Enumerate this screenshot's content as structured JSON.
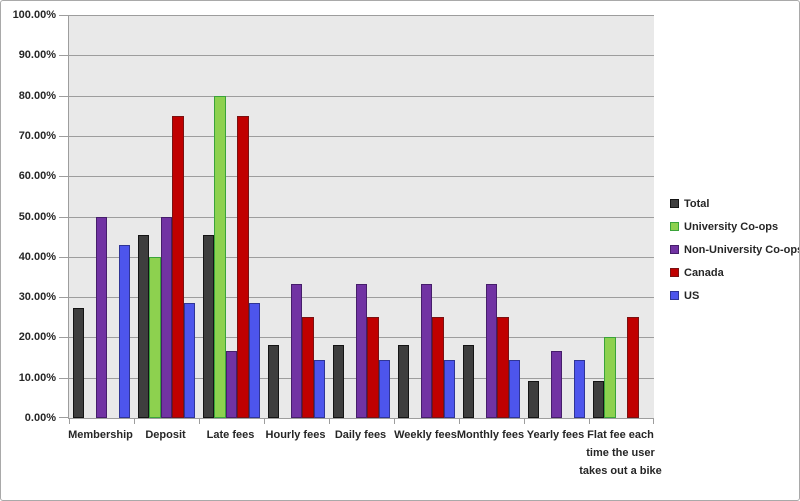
{
  "chart_data": {
    "type": "bar",
    "title": "",
    "xlabel": "",
    "ylabel": "",
    "grid": true,
    "legend_position": "right",
    "ylim": [
      0,
      100
    ],
    "y_ticks": [
      "0.00%",
      "10.00%",
      "20.00%",
      "30.00%",
      "40.00%",
      "50.00%",
      "60.00%",
      "70.00%",
      "80.00%",
      "90.00%",
      "100.00%"
    ],
    "categories": [
      "Membership",
      "Deposit",
      "Late fees",
      "Hourly fees",
      "Daily fees",
      "Weekly fees",
      "Monthly fees",
      "Yearly fees",
      "Flat fee each time the user takes out a bike"
    ],
    "series": [
      {
        "name": "Total",
        "fill": "#3E3E3E",
        "border": "#141414",
        "values": [
          27.27,
          45.45,
          45.45,
          18.18,
          18.18,
          18.18,
          18.18,
          9.09,
          9.09
        ]
      },
      {
        "name": "University Co-ops",
        "fill": "#8DD14F",
        "border": "#3AA33A",
        "values": [
          0,
          40,
          80,
          0,
          0,
          0,
          0,
          0,
          20
        ]
      },
      {
        "name": "Non-University Co-ops",
        "fill": "#7133A3",
        "border": "#461E6B",
        "values": [
          50,
          50,
          16.67,
          33.33,
          33.33,
          33.33,
          33.33,
          16.67,
          0
        ]
      },
      {
        "name": "Canada",
        "fill": "#C00000",
        "border": "#7A1212",
        "values": [
          0,
          75,
          75,
          25,
          25,
          25,
          25,
          0,
          25
        ]
      },
      {
        "name": "US",
        "fill": "#4D55EC",
        "border": "#2F3596",
        "values": [
          42.86,
          28.57,
          28.57,
          14.29,
          14.29,
          14.29,
          14.29,
          14.29,
          0
        ]
      }
    ]
  },
  "colors": {
    "background": "#FFFFFF",
    "frame_border": "#A9A9A9",
    "plot_bg": "#E9E9E9",
    "grid_line": "#9D9D9D",
    "axis_line": "#9D9D9D",
    "text": "#262626"
  }
}
